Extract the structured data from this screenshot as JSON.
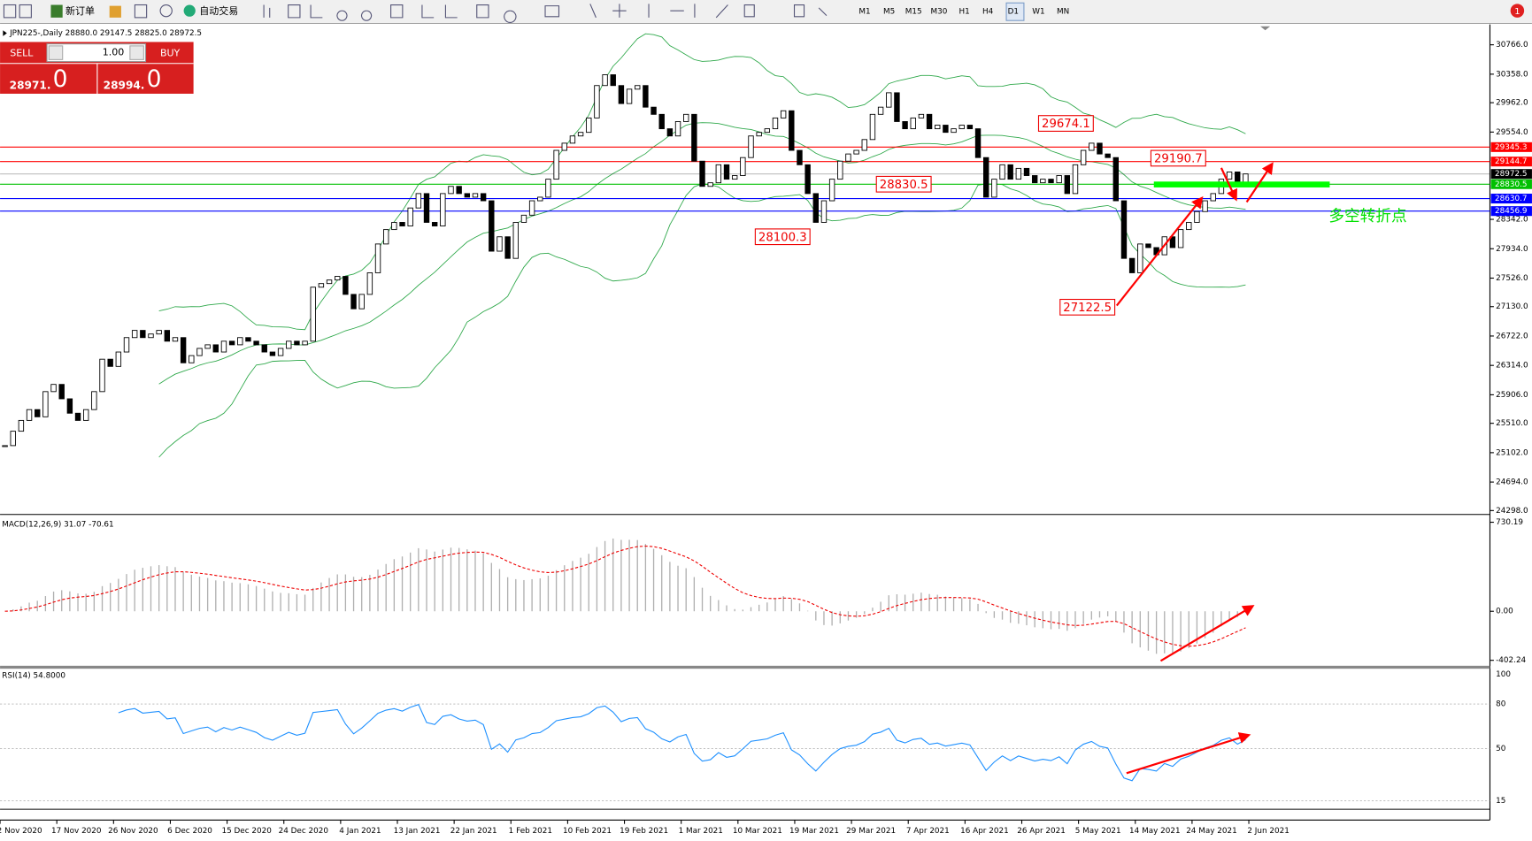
{
  "toolbar": {
    "new_order": "新订单",
    "auto_trading": "自动交易",
    "timeframes": [
      "M1",
      "M5",
      "M15",
      "M30",
      "H1",
      "H4",
      "D1",
      "W1",
      "MN"
    ],
    "alerts": 1
  },
  "trade_panel": {
    "sell": "SELL",
    "lot": "1.00",
    "buy": "BUY",
    "bid_main": "28971.",
    "bid_last": "0",
    "ask_main": "28994.",
    "ask_last": "0"
  },
  "price_chart": {
    "type": "candlestick",
    "header": "JPN225-,Daily  28880.0 29147.5 28825.0 28972.5",
    "ylim": [
      24244,
      31022
    ],
    "yticks": [
      {
        "value": 30766,
        "label": "30766.0"
      },
      {
        "value": 30358,
        "label": "30358.0"
      },
      {
        "value": 29962,
        "label": "29962.0"
      },
      {
        "value": 29554,
        "label": "29554.0"
      },
      {
        "value": 28342,
        "label": "28342.0"
      },
      {
        "value": 27934,
        "label": "27934.0"
      },
      {
        "value": 27526,
        "label": "27526.0"
      },
      {
        "value": 27130,
        "label": "27130.0"
      },
      {
        "value": 26722,
        "label": "26722.0"
      },
      {
        "value": 26314,
        "label": "26314.0"
      },
      {
        "value": 25906,
        "label": "25906.0"
      },
      {
        "value": 25510,
        "label": "25510.0"
      },
      {
        "value": 25102,
        "label": "25102.0"
      },
      {
        "value": 24694,
        "label": "24694.0"
      },
      {
        "value": 24298,
        "label": "24298.0"
      }
    ],
    "closes": [
      25200,
      25400,
      25550,
      25700,
      25600,
      25950,
      26050,
      25850,
      25650,
      25550,
      25700,
      25950,
      26400,
      26300,
      26500,
      26700,
      26800,
      26700,
      26750,
      26800,
      26650,
      26700,
      26350,
      26450,
      26550,
      26600,
      26500,
      26650,
      26600,
      26700,
      26650,
      26600,
      26500,
      26450,
      26550,
      26650,
      26600,
      26650,
      27400,
      27450,
      27500,
      27550,
      27300,
      27100,
      27300,
      27600,
      28000,
      28200,
      28300,
      28250,
      28500,
      28700,
      28300,
      28250,
      28700,
      28800,
      28700,
      28650,
      28700,
      28600,
      27900,
      28100,
      27800,
      28300,
      28400,
      28600,
      28650,
      28900,
      29300,
      29400,
      29500,
      29550,
      29750,
      30200,
      30350,
      30200,
      29950,
      30150,
      30200,
      29900,
      29800,
      29600,
      29500,
      29700,
      29800,
      29150,
      28800,
      28850,
      29100,
      28900,
      28950,
      29200,
      29500,
      29550,
      29600,
      29750,
      29850,
      29300,
      29100,
      28700,
      28300,
      28600,
      28900,
      29150,
      29250,
      29300,
      29450,
      29800,
      29900,
      30100,
      29700,
      29600,
      29750,
      29800,
      29600,
      29650,
      29550,
      29600,
      29650,
      29600,
      29200,
      28650,
      28900,
      29100,
      28900,
      29050,
      28950,
      28850,
      28900,
      28850,
      28950,
      28700,
      29100,
      29300,
      29400,
      29250,
      29200,
      28600,
      27800,
      27600,
      28000,
      27950,
      27850,
      28100,
      27950,
      28200,
      28300,
      28450,
      28600,
      28700,
      28900,
      29000,
      28800,
      28972.5
    ],
    "price_lines": [
      {
        "value": 29345.3,
        "color": "#ff0000"
      },
      {
        "value": 29144.7,
        "color": "#ff0000"
      },
      {
        "value": 28972.5,
        "color": "#000000"
      },
      {
        "value": 28830.5,
        "color": "#00c000"
      },
      {
        "value": 28630.7,
        "color": "#0000ff"
      },
      {
        "value": 28456.9,
        "color": "#0000ff"
      }
    ],
    "annotations": [
      {
        "value": 29674.1
      },
      {
        "value": 29190.7
      },
      {
        "value": 28830.5
      },
      {
        "value": 28100.3
      },
      {
        "value": 27122.5
      }
    ],
    "note": "多空转折点"
  },
  "macd": {
    "header": "MACD(12,26,9) 31.07 -70.61",
    "ylim": [
      -447,
      770
    ],
    "yticks": [
      730.19,
      {
        "value": 0,
        "label": "0.00"
      },
      -402.24
    ]
  },
  "rsi": {
    "header": "RSI(14) 54.8000",
    "ylim": [
      10,
      103
    ],
    "yticks": [
      100,
      80,
      50,
      15
    ]
  },
  "dates": [
    "2 Nov 2020",
    "17 Nov 2020",
    "26 Nov 2020",
    "6 Dec 2020",
    "15 Dec 2020",
    "24 Dec 2020",
    "4 Jan 2021",
    "13 Jan 2021",
    "22 Jan 2021",
    "1 Feb 2021",
    "10 Feb 2021",
    "19 Feb 2021",
    "1 Mar 2021",
    "10 Mar 2021",
    "19 Mar 2021",
    "29 Mar 2021",
    "7 Apr 2021",
    "16 Apr 2021",
    "26 Apr 2021",
    "5 May 2021",
    "14 May 2021",
    "24 May 2021",
    "2 Jun 2021"
  ]
}
